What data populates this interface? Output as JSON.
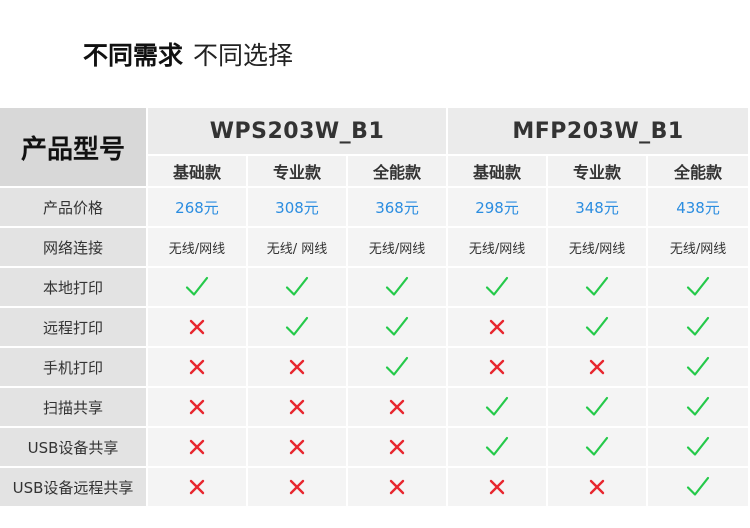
{
  "heading": {
    "bold": "不同需求",
    "light": "不同选择"
  },
  "table": {
    "corner_label": "产品型号",
    "models": [
      {
        "name": "WPS203W_B1",
        "tiers": [
          "基础款",
          "专业款",
          "全能款"
        ]
      },
      {
        "name": "MFP203W_B1",
        "tiers": [
          "基础款",
          "专业款",
          "全能款"
        ]
      }
    ],
    "price_row": {
      "label": "产品价格",
      "values": [
        "268元",
        "308元",
        "368元",
        "298元",
        "348元",
        "438元"
      ],
      "color": "#2b8de0"
    },
    "network_row": {
      "label": "网络连接",
      "values": [
        "无线/网线",
        "无线/ 网线",
        "无线/网线",
        "无线/网线",
        "无线/网线",
        "无线/网线"
      ]
    },
    "feature_rows": [
      {
        "label": "本地打印",
        "values": [
          true,
          true,
          true,
          true,
          true,
          true
        ]
      },
      {
        "label": "远程打印",
        "values": [
          false,
          true,
          true,
          false,
          true,
          true
        ]
      },
      {
        "label": "手机打印",
        "values": [
          false,
          false,
          true,
          false,
          false,
          true
        ]
      },
      {
        "label": "扫描共享",
        "values": [
          false,
          false,
          false,
          true,
          true,
          true
        ]
      },
      {
        "label": "USB设备共享",
        "values": [
          false,
          false,
          false,
          true,
          true,
          true
        ]
      },
      {
        "label": "USB设备远程共享",
        "values": [
          false,
          false,
          false,
          false,
          false,
          true
        ]
      }
    ],
    "icons": {
      "yes": "check-icon",
      "no": "cross-icon"
    },
    "colors": {
      "check": "#25c94a",
      "cross": "#e8262e"
    }
  }
}
